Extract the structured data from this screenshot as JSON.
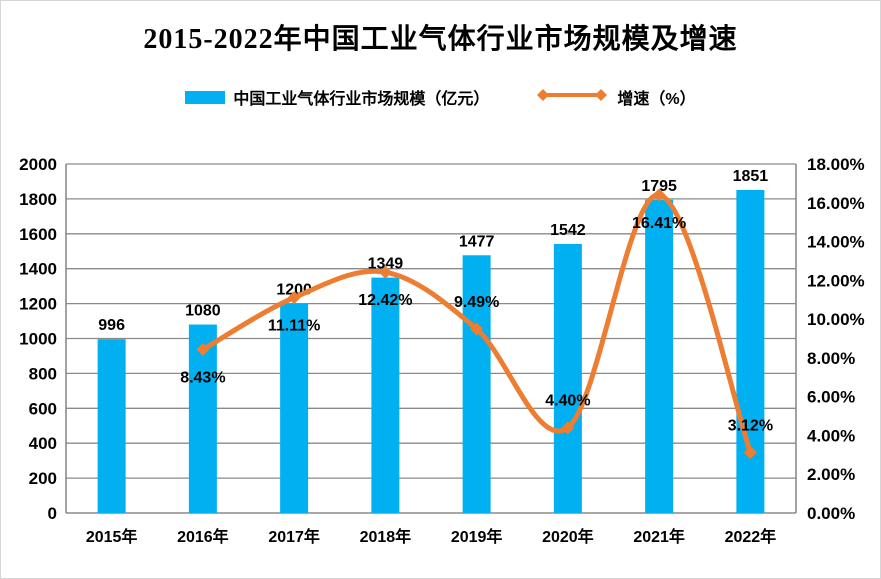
{
  "chart_data": {
    "type": "bar+line",
    "title": "2015-2022年中国工业气体行业市场规模及增速",
    "categories": [
      "2015年",
      "2016年",
      "2017年",
      "2018年",
      "2019年",
      "2020年",
      "2021年",
      "2022年"
    ],
    "series": [
      {
        "name": "中国工业气体行业市场规模（亿元）",
        "type": "bar",
        "color": "#00B0F0",
        "values": [
          996,
          1080,
          1200,
          1349,
          1477,
          1542,
          1795,
          1851
        ],
        "labels": [
          "996",
          "1080",
          "1200",
          "1349",
          "1477",
          "1542",
          "1795",
          "1851"
        ]
      },
      {
        "name": "增速（%）",
        "type": "line",
        "color": "#ED7D31",
        "values": [
          null,
          8.43,
          11.11,
          12.42,
          9.49,
          4.4,
          16.41,
          3.12
        ],
        "labels": [
          null,
          "8.43%",
          "11.11%",
          "12.42%",
          "9.49%",
          "4.40%",
          "16.41%",
          "3.12%"
        ],
        "label_placement": [
          null,
          "below",
          "below",
          "below",
          "above",
          "above",
          "below",
          "above"
        ]
      }
    ],
    "left_axis": {
      "min": 0,
      "max": 2000,
      "step": 200,
      "ticks": [
        "0",
        "200",
        "400",
        "600",
        "800",
        "1000",
        "1200",
        "1400",
        "1600",
        "1800",
        "2000"
      ]
    },
    "right_axis": {
      "min": 0,
      "max": 18,
      "step": 2,
      "ticks": [
        "0.00%",
        "2.00%",
        "4.00%",
        "6.00%",
        "8.00%",
        "10.00%",
        "12.00%",
        "14.00%",
        "16.00%",
        "18.00%"
      ]
    },
    "grid": true,
    "legend_position": "top",
    "grid_color": "#8a8a8a"
  },
  "legend": [
    {
      "label": "中国工业气体行业市场规模（亿元）"
    },
    {
      "label": "增速（%）"
    }
  ]
}
